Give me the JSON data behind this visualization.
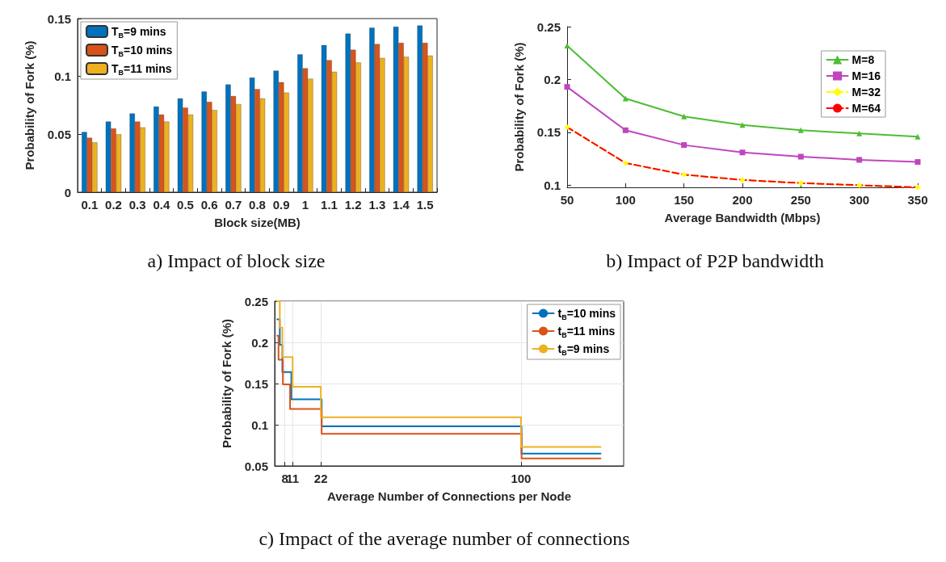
{
  "chart_data": [
    {
      "type": "bar",
      "xlabel": "Block size(MB)",
      "ylabel": "Probability of Fork (%)",
      "categories": [
        "0.1",
        "0.2",
        "0.3",
        "0.4",
        "0.5",
        "0.6",
        "0.7",
        "0.8",
        "0.9",
        "1",
        "1.1",
        "1.2",
        "1.3",
        "1.4",
        "1.5"
      ],
      "series": [
        {
          "name": "T$_{B}$=9 mins",
          "color": "#0072bd",
          "values": [
            0.052,
            0.061,
            0.068,
            0.074,
            0.081,
            0.087,
            0.093,
            0.099,
            0.105,
            0.119,
            0.127,
            0.137,
            0.142,
            0.143,
            0.144
          ]
        },
        {
          "name": "T$_{B}$=10 mins",
          "color": "#d95319",
          "values": [
            0.047,
            0.055,
            0.061,
            0.067,
            0.073,
            0.078,
            0.083,
            0.089,
            0.095,
            0.107,
            0.114,
            0.123,
            0.128,
            0.129,
            0.129
          ]
        },
        {
          "name": "T$_{B}$=11 mins",
          "color": "#edb120",
          "values": [
            0.043,
            0.05,
            0.056,
            0.061,
            0.067,
            0.071,
            0.076,
            0.081,
            0.086,
            0.098,
            0.104,
            0.112,
            0.116,
            0.117,
            0.118
          ]
        }
      ],
      "ylim": [
        0,
        0.15
      ],
      "yticks": [
        0,
        0.05,
        0.1,
        0.15
      ],
      "legend": "top left",
      "annotations": [
        "a) Impact of block size"
      ]
    },
    {
      "type": "line",
      "xlabel": "Average Bandwidth (Mbps)",
      "ylabel": "Probability of Fork (%)",
      "x": [
        50,
        100,
        150,
        200,
        250,
        300,
        350
      ],
      "series": [
        {
          "name": "M=8",
          "color": "#4dbd33",
          "marker": "triangle",
          "line_style": "solid",
          "values": [
            0.232,
            0.182,
            0.165,
            0.157,
            0.152,
            0.149,
            0.146
          ]
        },
        {
          "name": "M=16",
          "color": "#bf45bf",
          "marker": "square",
          "line_style": "solid",
          "values": [
            0.193,
            0.152,
            0.138,
            0.131,
            0.127,
            0.124,
            0.122
          ]
        },
        {
          "name": "M=32",
          "color": "#ffff00",
          "marker": "diamond",
          "line_style": "dashed",
          "values": [
            0.155,
            0.121,
            0.11,
            0.105,
            0.102,
            0.1,
            0.098
          ]
        },
        {
          "name": "M=64",
          "color": "#ff0000",
          "marker": "none",
          "line_style": "dashed",
          "values": [
            0.155,
            0.121,
            0.11,
            0.105,
            0.102,
            0.1,
            0.098
          ]
        }
      ],
      "xlim": [
        50,
        350
      ],
      "xticks": [
        50,
        100,
        150,
        200,
        250,
        300,
        350
      ],
      "ylim": [
        0.098,
        0.25
      ],
      "yticks": [
        0.1,
        0.15,
        0.2,
        0.25
      ],
      "legend": "top right",
      "annotations": [
        "b) Impact of P2P bandwidth"
      ]
    },
    {
      "type": "step",
      "xlabel": "Average Number of Connections per Node",
      "ylabel": "Probability of Fork (%)",
      "series": [
        {
          "name": "t$_{B}$=10 mins",
          "color": "#0072bd",
          "x": [
            5,
            6,
            7,
            10.5,
            22.3,
            100.2,
            131
          ],
          "values": [
            0.228,
            0.197,
            0.164,
            0.131,
            0.098,
            0.065,
            0.065
          ]
        },
        {
          "name": "t$_{B}$=11 mins",
          "color": "#d95319",
          "x": [
            5,
            5.5,
            7.2,
            10,
            22.3,
            100.2,
            131
          ],
          "values": [
            0.208,
            0.179,
            0.149,
            0.119,
            0.089,
            0.059,
            0.059
          ]
        },
        {
          "name": "t$_{B}$=9 mins",
          "color": "#edb120",
          "x": [
            5,
            6,
            7,
            11,
            22,
            100,
            131
          ],
          "values": [
            0.25,
            0.218,
            0.182,
            0.146,
            0.109,
            0.073,
            0.073
          ]
        }
      ],
      "xlim": [
        4,
        140
      ],
      "xticks": [
        8,
        11,
        22,
        100
      ],
      "ylim": [
        0.05,
        0.25
      ],
      "yticks": [
        0.05,
        0.1,
        0.15,
        0.2,
        0.25
      ],
      "grid": true,
      "legend": "top right",
      "annotations": [
        "c) Impact of the average number of connections"
      ]
    }
  ]
}
